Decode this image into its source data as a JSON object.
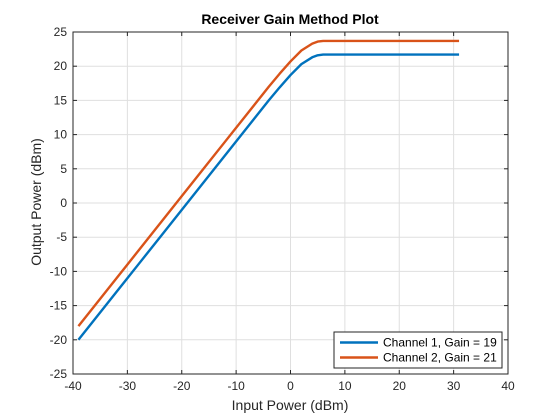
{
  "chart_data": {
    "type": "line",
    "title": "Receiver Gain Method Plot",
    "xlabel": "Input Power (dBm)",
    "ylabel": "Output Power (dBm)",
    "xlim": [
      -40,
      40
    ],
    "ylim": [
      -25,
      25
    ],
    "xticks": [
      -40,
      -30,
      -20,
      -10,
      0,
      10,
      20,
      30,
      40
    ],
    "yticks": [
      -25,
      -20,
      -15,
      -10,
      -5,
      0,
      5,
      10,
      15,
      20,
      25
    ],
    "grid": true,
    "legend_position": "bottom-right",
    "series": [
      {
        "name": "Channel 1, Gain = 19",
        "color": "#0072bd",
        "x": [
          -39,
          -36,
          -32,
          -28,
          -24,
          -20,
          -16,
          -12,
          -8,
          -4,
          -2,
          0,
          2,
          4,
          5,
          6,
          7,
          10,
          15,
          20,
          25,
          31
        ],
        "y": [
          -20,
          -17,
          -13,
          -9,
          -5,
          -1,
          3,
          7,
          11,
          15,
          16.9,
          18.7,
          20.3,
          21.3,
          21.6,
          21.7,
          21.7,
          21.7,
          21.7,
          21.7,
          21.7,
          21.7
        ]
      },
      {
        "name": "Channel 2, Gain = 21",
        "color": "#d95319",
        "x": [
          -39,
          -36,
          -32,
          -28,
          -24,
          -20,
          -16,
          -12,
          -8,
          -4,
          -2,
          0,
          2,
          4,
          5,
          6,
          7,
          10,
          15,
          20,
          25,
          31
        ],
        "y": [
          -18,
          -15,
          -11,
          -7,
          -3,
          1,
          5,
          9,
          13,
          17,
          18.9,
          20.7,
          22.3,
          23.3,
          23.6,
          23.7,
          23.7,
          23.7,
          23.7,
          23.7,
          23.7,
          23.7
        ]
      }
    ]
  }
}
